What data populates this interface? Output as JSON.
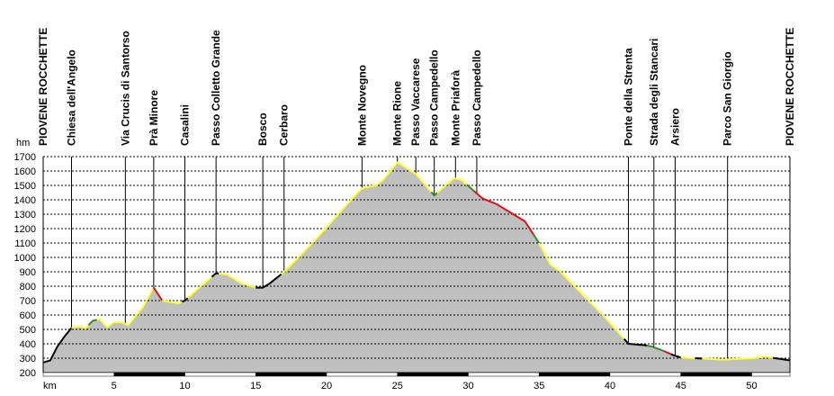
{
  "chart_data": {
    "type": "area",
    "title": "",
    "xlabel": "km",
    "ylabel": "hm",
    "xlim": [
      0,
      52.7
    ],
    "ylim": [
      200,
      1700
    ],
    "y_ticks": [
      200,
      300,
      400,
      500,
      600,
      700,
      800,
      900,
      1000,
      1100,
      1200,
      1300,
      1400,
      1500,
      1600,
      1700
    ],
    "x_ticks": [
      5,
      10,
      15,
      20,
      25,
      30,
      35,
      40,
      45,
      50
    ],
    "grid": true,
    "colors": {
      "fill": "#c0c0c0",
      "grid": "#000000",
      "segment_black": "#000000",
      "segment_yellow": "#ffff33",
      "segment_green": "#2e8b2e",
      "segment_red": "#dd1111"
    },
    "profile": [
      [
        0,
        270
      ],
      [
        0.5,
        285
      ],
      [
        1.0,
        380
      ],
      [
        1.5,
        450
      ],
      [
        2.0,
        510
      ],
      [
        2.5,
        520
      ],
      [
        3.0,
        510
      ],
      [
        3.5,
        560
      ],
      [
        4.0,
        570
      ],
      [
        4.5,
        515
      ],
      [
        5.0,
        550
      ],
      [
        5.5,
        550
      ],
      [
        6.0,
        530
      ],
      [
        7.0,
        650
      ],
      [
        7.8,
        790
      ],
      [
        8.4,
        700
      ],
      [
        9.0,
        690
      ],
      [
        9.5,
        680
      ],
      [
        10.0,
        700
      ],
      [
        11.0,
        790
      ],
      [
        12.2,
        890
      ],
      [
        13.0,
        880
      ],
      [
        14.0,
        820
      ],
      [
        15.0,
        790
      ],
      [
        15.5,
        790
      ],
      [
        16.0,
        820
      ],
      [
        17.0,
        900
      ],
      [
        18.0,
        1000
      ],
      [
        19.0,
        1100
      ],
      [
        20.0,
        1210
      ],
      [
        21.0,
        1320
      ],
      [
        22.0,
        1430
      ],
      [
        22.5,
        1480
      ],
      [
        23.5,
        1500
      ],
      [
        24.0,
        1540
      ],
      [
        25.0,
        1660
      ],
      [
        26.3,
        1580
      ],
      [
        27.0,
        1500
      ],
      [
        27.6,
        1430
      ],
      [
        28.5,
        1510
      ],
      [
        29.0,
        1550
      ],
      [
        29.5,
        1540
      ],
      [
        30.3,
        1470
      ],
      [
        31.0,
        1410
      ],
      [
        32.0,
        1370
      ],
      [
        33.0,
        1310
      ],
      [
        34.0,
        1250
      ],
      [
        35.0,
        1100
      ],
      [
        35.8,
        950
      ],
      [
        36.5,
        900
      ],
      [
        37.5,
        800
      ],
      [
        38.5,
        700
      ],
      [
        39.5,
        600
      ],
      [
        40.5,
        490
      ],
      [
        41.3,
        400
      ],
      [
        42.5,
        390
      ],
      [
        43.0,
        380
      ],
      [
        43.8,
        350
      ],
      [
        44.5,
        320
      ],
      [
        45.0,
        305
      ],
      [
        46.0,
        300
      ],
      [
        48.0,
        290
      ],
      [
        50.0,
        300
      ],
      [
        51.0,
        310
      ],
      [
        52.0,
        295
      ],
      [
        52.7,
        285
      ]
    ],
    "segments": [
      {
        "from": 0,
        "to": 2.0,
        "color": "black"
      },
      {
        "from": 2.0,
        "to": 3.2,
        "color": "yellow"
      },
      {
        "from": 3.2,
        "to": 3.8,
        "color": "green"
      },
      {
        "from": 3.8,
        "to": 7.8,
        "color": "yellow"
      },
      {
        "from": 7.8,
        "to": 8.4,
        "color": "red"
      },
      {
        "from": 8.4,
        "to": 9.8,
        "color": "yellow"
      },
      {
        "from": 9.8,
        "to": 10.2,
        "color": "black"
      },
      {
        "from": 10.2,
        "to": 11.9,
        "color": "yellow"
      },
      {
        "from": 11.9,
        "to": 12.4,
        "color": "black"
      },
      {
        "from": 12.4,
        "to": 15.0,
        "color": "yellow"
      },
      {
        "from": 15.0,
        "to": 16.8,
        "color": "black"
      },
      {
        "from": 16.8,
        "to": 27.4,
        "color": "yellow"
      },
      {
        "from": 27.4,
        "to": 27.8,
        "color": "green"
      },
      {
        "from": 27.8,
        "to": 29.9,
        "color": "yellow"
      },
      {
        "from": 29.9,
        "to": 30.4,
        "color": "green"
      },
      {
        "from": 30.4,
        "to": 34.6,
        "color": "red"
      },
      {
        "from": 34.6,
        "to": 35.0,
        "color": "green"
      },
      {
        "from": 35.0,
        "to": 41.0,
        "color": "yellow"
      },
      {
        "from": 41.0,
        "to": 42.6,
        "color": "black"
      },
      {
        "from": 42.6,
        "to": 43.8,
        "color": "green"
      },
      {
        "from": 43.8,
        "to": 44.3,
        "color": "red"
      },
      {
        "from": 44.3,
        "to": 45.0,
        "color": "black"
      },
      {
        "from": 45.0,
        "to": 46.0,
        "color": "yellow"
      },
      {
        "from": 46.0,
        "to": 46.5,
        "color": "black"
      },
      {
        "from": 46.5,
        "to": 51.5,
        "color": "yellow"
      },
      {
        "from": 51.5,
        "to": 52.7,
        "color": "black"
      }
    ],
    "waypoints": [
      {
        "name": "PIOVENE ROCCHETTE",
        "km": 0
      },
      {
        "name": "Chiesa dell'Angelo",
        "km": 2.0
      },
      {
        "name": "Via Crucis di Santorso",
        "km": 5.8
      },
      {
        "name": "Prà Minore",
        "km": 7.8
      },
      {
        "name": "Casalini",
        "km": 10.0
      },
      {
        "name": "Passo Colletto Grande",
        "km": 12.2
      },
      {
        "name": "Bosco",
        "km": 15.5
      },
      {
        "name": "Cerbaro",
        "km": 17.0
      },
      {
        "name": "Monte Novegno",
        "km": 22.5
      },
      {
        "name": "Monte Rione",
        "km": 25.0
      },
      {
        "name": "Passo Vaccarese",
        "km": 26.3
      },
      {
        "name": "Passo Campedello",
        "km": 27.6
      },
      {
        "name": "Monte Priaforà",
        "km": 29.1
      },
      {
        "name": "Passo Campedello",
        "km": 30.6
      },
      {
        "name": "Ponte della Strenta",
        "km": 41.3
      },
      {
        "name": "Strada degli Stancari",
        "km": 43.1
      },
      {
        "name": "Arsiero",
        "km": 44.6
      },
      {
        "name": "Parco San Giorgio",
        "km": 48.3
      },
      {
        "name": "PIOVENE ROCCHETTE",
        "km": 52.7
      }
    ]
  }
}
